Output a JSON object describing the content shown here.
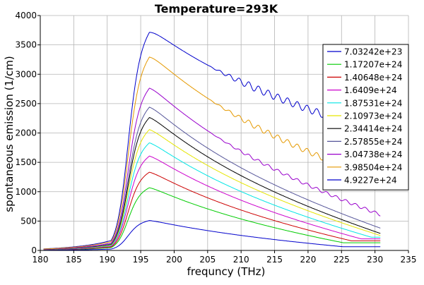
{
  "chart_data": {
    "type": "line",
    "title": "Temperature=293K",
    "xlabel": "frequncy (THz)",
    "ylabel": "spontaneous emission (1/cm)",
    "xlim": [
      180,
      235
    ],
    "ylim": [
      0,
      4000
    ],
    "xticks": [
      180,
      185,
      190,
      195,
      200,
      205,
      210,
      215,
      220,
      225,
      230,
      235
    ],
    "yticks": [
      0,
      500,
      1000,
      1500,
      2000,
      2500,
      3000,
      3500,
      4000
    ],
    "grid": true,
    "legend_position": "top-right",
    "x_range": [
      180.5,
      230.8
    ],
    "series": [
      {
        "name": "7.03242e+23",
        "color": "#0000cc",
        "peak": 3790,
        "tail": 2000,
        "ripple": 60
      },
      {
        "name": "1.17207e+24",
        "color": "#00cc00",
        "peak": 1090,
        "tail": 10,
        "ripple": 0
      },
      {
        "name": "1.40648e+24",
        "color": "#cc0000",
        "peak": 1360,
        "tail": 50,
        "ripple": 0
      },
      {
        "name": "1.6409e+24",
        "color": "#cc00cc",
        "peak": 1640,
        "tail": 110,
        "ripple": 0
      },
      {
        "name": "1.87531e+24",
        "color": "#00e5e5",
        "peak": 1870,
        "tail": 180,
        "ripple": 0
      },
      {
        "name": "2.10973e+24",
        "color": "#e5e500",
        "peak": 2100,
        "tail": 255,
        "ripple": 0
      },
      {
        "name": "2.34414e+24",
        "color": "#000000",
        "peak": 2310,
        "tail": 290,
        "ripple": 0
      },
      {
        "name": "2.57855e+24",
        "color": "#555599",
        "peak": 2490,
        "tail": 380,
        "ripple": 0
      },
      {
        "name": "3.04738e+24",
        "color": "#9900cc",
        "peak": 2820,
        "tail": 610,
        "ripple": 25
      },
      {
        "name": "3.98504e+24",
        "color": "#e59900",
        "peak": 3360,
        "tail": 1190,
        "ripple": 45
      },
      {
        "name": "4.9227e+24",
        "color": "#0000cc",
        "peak": 520,
        "tail": 5,
        "ripple": 0
      }
    ]
  }
}
